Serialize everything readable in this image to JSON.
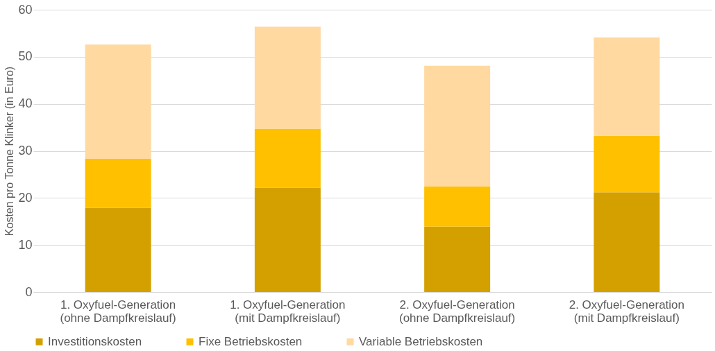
{
  "chart_data": {
    "type": "bar",
    "stacked": true,
    "ylabel": "Kosten pro Tonne Klinker (in Euro)",
    "categories": [
      "1. Oxyfuel-Generation\n(ohne Dampfkreislauf)",
      "1. Oxyfuel-Generation\n(mit Dampfkreislauf)",
      "2. Oxyfuel-Generation\n(ohne Dampfkreislauf)",
      "2. Oxyfuel-Generation\n(mit Dampfkreislauf)"
    ],
    "series": [
      {
        "name": "Investitionskosten",
        "color": "#d4a000",
        "values": [
          17.9,
          22.2,
          13.9,
          21.2
        ]
      },
      {
        "name": "Fixe Betriebskosten",
        "color": "#ffc000",
        "values": [
          10.4,
          12.5,
          8.6,
          12.0
        ]
      },
      {
        "name": "Variable Betriebskosten",
        "color": "#ffd9a0",
        "values": [
          24.3,
          21.7,
          25.6,
          20.9
        ]
      }
    ],
    "ylim": [
      0,
      60
    ],
    "yticks": [
      0,
      10,
      20,
      30,
      40,
      50,
      60
    ],
    "grid": "y",
    "legend": "bottom"
  }
}
